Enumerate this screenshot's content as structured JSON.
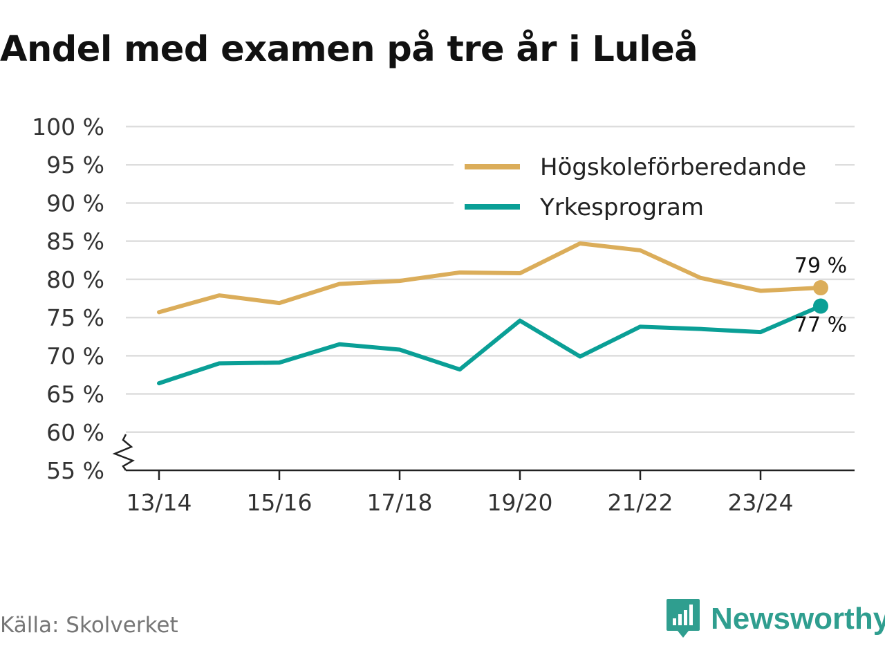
{
  "title": "Andel med examen på tre år i Luleå",
  "source": "Källa: Skolverket",
  "brand": {
    "name": "Newsworthy",
    "icon": "newsworthy-logo-icon",
    "color": "#2f9e8f"
  },
  "chart_data": {
    "type": "line",
    "title": "Andel med examen på tre år i Luleå",
    "xlabel": "",
    "ylabel": "",
    "x": [
      "13/14",
      "14/15",
      "15/16",
      "16/17",
      "17/18",
      "18/19",
      "19/20",
      "20/21",
      "21/22",
      "22/23",
      "23/24",
      "24/25"
    ],
    "x_tick_labels": [
      "13/14",
      "15/16",
      "17/18",
      "19/20",
      "21/22",
      "23/24"
    ],
    "ylim": [
      55,
      100
    ],
    "y_ticks": [
      55,
      60,
      65,
      70,
      75,
      80,
      85,
      90,
      95,
      100
    ],
    "y_tick_labels": [
      "55 %",
      "60 %",
      "65 %",
      "70 %",
      "75 %",
      "80 %",
      "85 %",
      "90 %",
      "95 %",
      "100 %"
    ],
    "grid": true,
    "axis_break": true,
    "legend_position": "top-right",
    "series": [
      {
        "name": "Högskoleförberedande",
        "color": "#dbad5a",
        "values": [
          75.7,
          77.9,
          76.9,
          79.4,
          79.8,
          80.9,
          80.8,
          84.7,
          83.8,
          80.2,
          78.5,
          78.9
        ],
        "end_label": "79 %"
      },
      {
        "name": "Yrkesprogram",
        "color": "#0a9f96",
        "values": [
          66.4,
          69.0,
          69.1,
          71.5,
          70.8,
          68.2,
          74.6,
          69.9,
          73.8,
          73.5,
          73.1,
          76.5
        ],
        "end_label": "77 %"
      }
    ]
  }
}
